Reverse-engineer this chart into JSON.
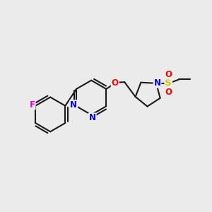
{
  "bg_color": "#ebebeb",
  "bond_color": "#1a1a1a",
  "bond_width": 1.5,
  "atom_colors": {
    "N": "#0000ee",
    "O": "#ff0000",
    "F": "#ee00ee",
    "S": "#cccc00",
    "C": "#1a1a1a"
  },
  "font_size": 8.5
}
